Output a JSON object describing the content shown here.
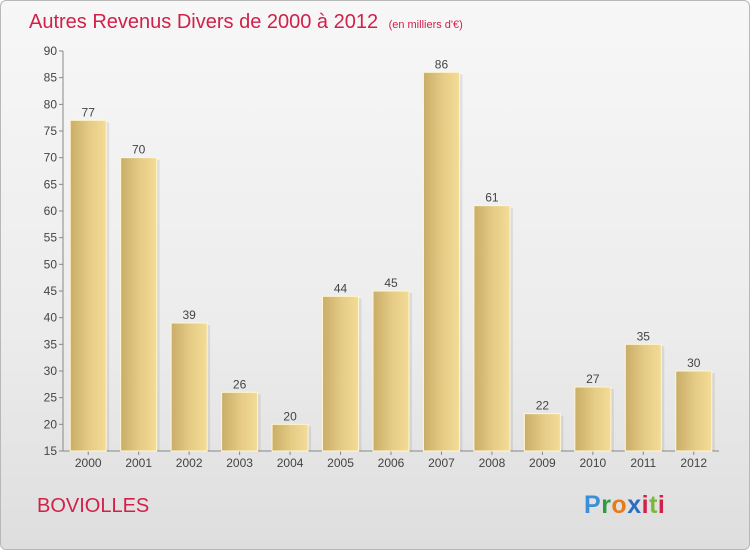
{
  "title": "Autres Revenus Divers de 2000 à 2012",
  "unit": "(en milliers d'€)",
  "commune": "BOVIOLLES",
  "logo": "Proxiti",
  "colors": {
    "title": "#d1204a",
    "bar_light": "#f3dc98",
    "bar_dark": "#c9ad68"
  },
  "chart_data": {
    "type": "bar",
    "title": "Autres Revenus Divers de 2000 à 2012",
    "xlabel": "",
    "ylabel": "",
    "ylim": [
      15,
      90
    ],
    "yticks": [
      15,
      20,
      25,
      30,
      35,
      40,
      45,
      50,
      55,
      60,
      65,
      70,
      75,
      80,
      85,
      90
    ],
    "grid": false,
    "categories": [
      "2000",
      "2001",
      "2002",
      "2003",
      "2004",
      "2005",
      "2006",
      "2007",
      "2008",
      "2009",
      "2010",
      "2011",
      "2012"
    ],
    "values": [
      77,
      70,
      39,
      26,
      20,
      44,
      45,
      86,
      61,
      22,
      27,
      35,
      30
    ]
  }
}
